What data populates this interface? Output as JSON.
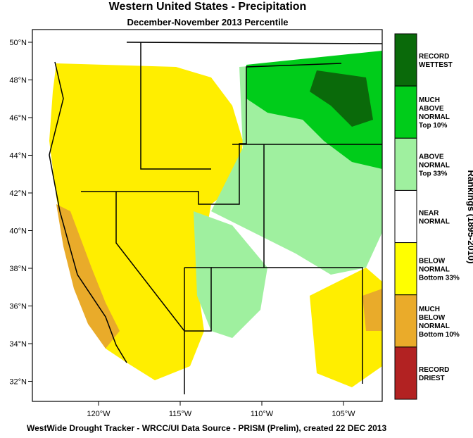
{
  "title": "Western United States - Precipitation",
  "subtitle": "December-November 2013 Percentile",
  "footer": "WestWide Drought Tracker - WRCC/UI  Data Source - PRISM (Prelim), created 22 DEC 2013",
  "legend": {
    "title": "Rankings (1895-2010)",
    "items": [
      {
        "label": "RECORD\nWETTEST",
        "color": "#0a6a0a"
      },
      {
        "label": "MUCH\nABOVE\nNORMAL\nTop 10%",
        "color": "#00cc1a"
      },
      {
        "label": "ABOVE\nNORMAL\nTop 33%",
        "color": "#9ff09f"
      },
      {
        "label": "NEAR\nNORMAL",
        "color": "#ffffff"
      },
      {
        "label": "BELOW\nNORMAL\nBottom 33%",
        "color": "#ffff00"
      },
      {
        "label": "MUCH\nBELOW\nNORMAL\nBottom 10%",
        "color": "#eaab2a"
      },
      {
        "label": "RECORD\nDRIEST",
        "color": "#b22222"
      }
    ]
  },
  "lat_ticks": [
    {
      "value": 50,
      "label": "50°N"
    },
    {
      "value": 48,
      "label": "48°N"
    },
    {
      "value": 46,
      "label": "46°N"
    },
    {
      "value": 44,
      "label": "44°N"
    },
    {
      "value": 42,
      "label": "42°N"
    },
    {
      "value": 40,
      "label": "40°N"
    },
    {
      "value": 38,
      "label": "38°N"
    },
    {
      "value": 36,
      "label": "36°N"
    },
    {
      "value": 34,
      "label": "34°N"
    },
    {
      "value": 32,
      "label": "32°N"
    }
  ],
  "lon_ticks": [
    {
      "value": -120,
      "label": "120°W"
    },
    {
      "value": -115,
      "label": "115°W"
    },
    {
      "value": -110,
      "label": "110°W"
    },
    {
      "value": -105,
      "label": "105°W"
    }
  ]
}
